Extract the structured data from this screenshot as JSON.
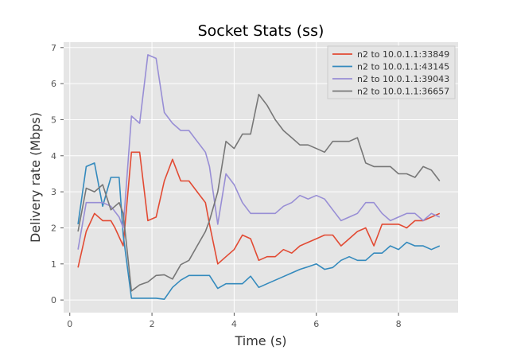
{
  "chart_data": {
    "type": "line",
    "title": "Socket Stats (ss)",
    "xlabel": "Time (s)",
    "ylabel": "Delivery rate (Mbps)",
    "xlim": [
      -0.15,
      9.45
    ],
    "ylim": [
      -0.35,
      7.15
    ],
    "xticks": [
      0,
      2,
      4,
      6,
      8
    ],
    "yticks": [
      0,
      1,
      2,
      3,
      4,
      5,
      6,
      7
    ],
    "grid": true,
    "legend_position": "top-right",
    "series": [
      {
        "name": "n2 to 10.0.1.1:33849",
        "color": "#E24A33",
        "x": [
          0.2,
          0.4,
          0.6,
          0.8,
          1.0,
          1.1,
          1.3,
          1.5,
          1.7,
          1.9,
          2.1,
          2.3,
          2.5,
          2.7,
          2.9,
          3.1,
          3.3,
          3.4,
          3.6,
          3.8,
          4.0,
          4.2,
          4.4,
          4.6,
          4.8,
          5.0,
          5.2,
          5.4,
          5.6,
          5.8,
          6.0,
          6.2,
          6.4,
          6.6,
          6.8,
          7.0,
          7.2,
          7.4,
          7.6,
          7.8,
          8.0,
          8.2,
          8.4,
          8.6,
          8.8,
          9.0
        ],
        "y": [
          0.9,
          1.9,
          2.4,
          2.2,
          2.2,
          2.0,
          1.5,
          4.1,
          4.1,
          2.2,
          2.3,
          3.3,
          3.9,
          3.3,
          3.3,
          3.0,
          2.7,
          2.1,
          1.0,
          1.2,
          1.4,
          1.8,
          1.7,
          1.1,
          1.2,
          1.2,
          1.4,
          1.3,
          1.5,
          1.6,
          1.7,
          1.8,
          1.8,
          1.5,
          1.7,
          1.9,
          2.0,
          1.5,
          2.1,
          2.1,
          2.1,
          2.0,
          2.2,
          2.2,
          2.3,
          2.4
        ]
      },
      {
        "name": "n2 to 10.0.1.1:43145",
        "color": "#348ABD",
        "x": [
          0.2,
          0.4,
          0.6,
          0.8,
          1.0,
          1.2,
          1.3,
          1.5,
          1.7,
          1.9,
          2.1,
          2.3,
          2.5,
          2.7,
          2.9,
          3.1,
          3.3,
          3.4,
          3.6,
          3.8,
          4.0,
          4.2,
          4.4,
          4.6,
          4.8,
          5.0,
          5.2,
          5.4,
          5.6,
          5.8,
          6.0,
          6.2,
          6.4,
          6.6,
          6.8,
          7.0,
          7.2,
          7.4,
          7.6,
          7.8,
          8.0,
          8.2,
          8.4,
          8.6,
          8.8,
          9.0
        ],
        "y": [
          2.1,
          3.7,
          3.8,
          2.6,
          3.4,
          3.4,
          1.8,
          0.05,
          0.05,
          0.05,
          0.05,
          0.02,
          0.35,
          0.55,
          0.68,
          0.68,
          0.68,
          0.68,
          0.32,
          0.45,
          0.45,
          0.45,
          0.66,
          0.35,
          0.45,
          0.55,
          0.65,
          0.75,
          0.85,
          0.92,
          1.0,
          0.85,
          0.9,
          1.1,
          1.2,
          1.1,
          1.1,
          1.3,
          1.3,
          1.5,
          1.4,
          1.6,
          1.5,
          1.5,
          1.4,
          1.5
        ]
      },
      {
        "name": "n2 to 10.0.1.1:39043",
        "color": "#988ED5",
        "x": [
          0.2,
          0.4,
          0.6,
          0.8,
          1.0,
          1.2,
          1.3,
          1.5,
          1.7,
          1.9,
          2.1,
          2.3,
          2.5,
          2.7,
          2.9,
          3.1,
          3.3,
          3.4,
          3.6,
          3.8,
          4.0,
          4.2,
          4.4,
          4.6,
          4.8,
          5.0,
          5.2,
          5.4,
          5.6,
          5.8,
          6.0,
          6.2,
          6.4,
          6.6,
          6.8,
          7.0,
          7.2,
          7.4,
          7.6,
          7.8,
          8.0,
          8.2,
          8.4,
          8.6,
          8.8,
          9.0
        ],
        "y": [
          1.4,
          2.7,
          2.7,
          2.7,
          2.6,
          2.3,
          2.0,
          5.1,
          4.9,
          6.8,
          6.7,
          5.2,
          4.9,
          4.7,
          4.7,
          4.4,
          4.1,
          3.7,
          2.1,
          3.5,
          3.2,
          2.7,
          2.4,
          2.4,
          2.4,
          2.4,
          2.6,
          2.7,
          2.9,
          2.8,
          2.9,
          2.8,
          2.5,
          2.2,
          2.3,
          2.4,
          2.7,
          2.7,
          2.4,
          2.2,
          2.3,
          2.4,
          2.4,
          2.2,
          2.4,
          2.3
        ]
      },
      {
        "name": "n2 to 10.0.1.1:36657",
        "color": "#777777",
        "x": [
          0.2,
          0.4,
          0.6,
          0.8,
          1.0,
          1.2,
          1.3,
          1.5,
          1.7,
          1.9,
          2.1,
          2.3,
          2.5,
          2.7,
          2.9,
          3.1,
          3.3,
          3.4,
          3.6,
          3.8,
          4.0,
          4.2,
          4.4,
          4.6,
          4.8,
          5.0,
          5.2,
          5.4,
          5.6,
          5.8,
          6.0,
          6.2,
          6.4,
          6.6,
          6.8,
          7.0,
          7.2,
          7.4,
          7.6,
          7.8,
          8.0,
          8.2,
          8.4,
          8.6,
          8.8,
          9.0
        ],
        "y": [
          1.9,
          3.1,
          3.0,
          3.2,
          2.5,
          2.7,
          2.4,
          0.25,
          0.42,
          0.5,
          0.68,
          0.7,
          0.58,
          0.98,
          1.1,
          1.5,
          1.9,
          2.2,
          3.0,
          4.4,
          4.2,
          4.6,
          4.6,
          5.7,
          5.4,
          5.0,
          4.7,
          4.5,
          4.3,
          4.3,
          4.2,
          4.1,
          4.4,
          4.4,
          4.4,
          4.5,
          3.8,
          3.7,
          3.7,
          3.7,
          3.5,
          3.5,
          3.4,
          3.7,
          3.6,
          3.3
        ]
      }
    ]
  }
}
